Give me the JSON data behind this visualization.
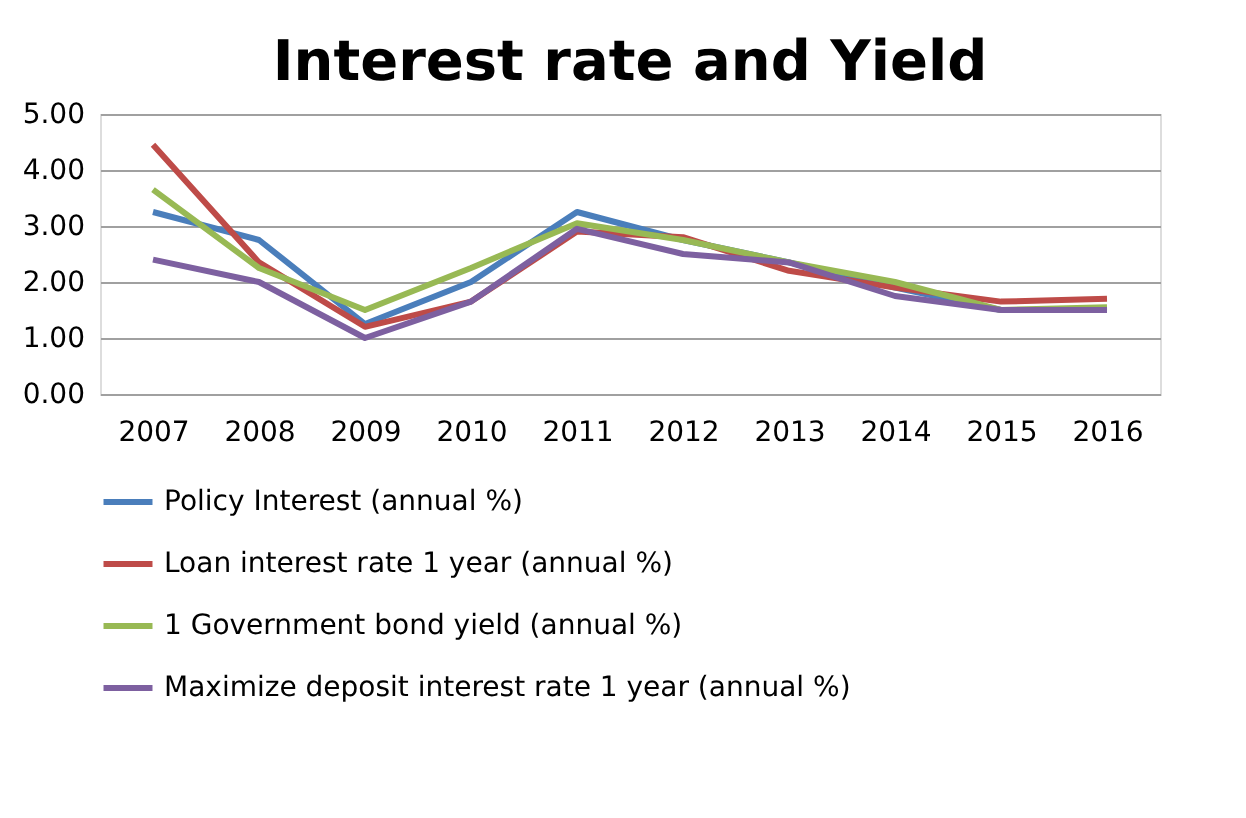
{
  "chart_data": {
    "type": "line",
    "title": "Interest rate and Yield",
    "categories": [
      "2007",
      "2008",
      "2009",
      "2010",
      "2011",
      "2012",
      "2013",
      "2014",
      "2015",
      "2016"
    ],
    "series": [
      {
        "name": "Policy Interest  (annual %)",
        "color": "#4a7ebb",
        "values": [
          3.25,
          2.75,
          1.25,
          2.0,
          3.25,
          2.75,
          2.35,
          1.9,
          1.5,
          1.5
        ]
      },
      {
        "name": "Loan interest rate 1 year  (annual %)",
        "color": "#be4b48",
        "values": [
          4.45,
          2.35,
          1.2,
          1.65,
          2.9,
          2.8,
          2.2,
          1.9,
          1.65,
          1.7
        ]
      },
      {
        "name": "1 Government bond yield (annual %)",
        "color": "#98b954",
        "values": [
          3.65,
          2.25,
          1.5,
          2.25,
          3.05,
          2.75,
          2.35,
          2.0,
          1.5,
          1.55
        ]
      },
      {
        "name": "Maximize deposit interest rate 1 year  (annual %)",
        "color": "#7d60a0",
        "values": [
          2.4,
          2.0,
          1.0,
          1.65,
          2.95,
          2.5,
          2.35,
          1.75,
          1.5,
          1.5
        ]
      }
    ],
    "ylim": [
      0,
      5
    ],
    "yticks": [
      {
        "value": 0,
        "label": "0.00"
      },
      {
        "value": 1,
        "label": "1.00"
      },
      {
        "value": 2,
        "label": "2.00"
      },
      {
        "value": 3,
        "label": "3.00"
      },
      {
        "value": 4,
        "label": "4.00"
      },
      {
        "value": 5,
        "label": "5.00"
      }
    ],
    "grid": "y",
    "legend": "bottom",
    "marker": "none",
    "line_style": "solid"
  }
}
